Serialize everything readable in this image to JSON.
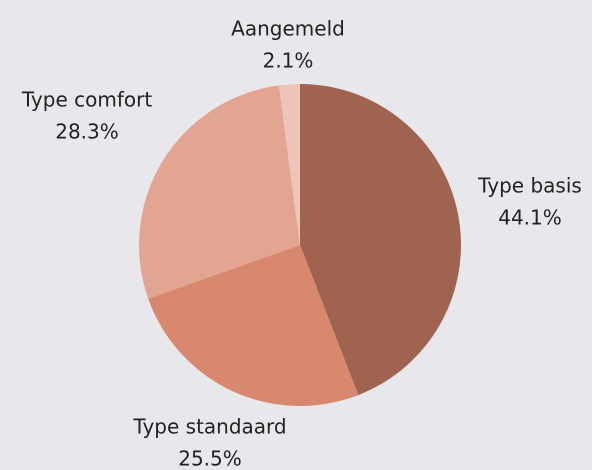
{
  "chart_data": {
    "type": "pie",
    "categories": [
      "Type basis",
      "Type standaard",
      "Type comfort",
      "Aangemeld"
    ],
    "values": [
      44.1,
      25.5,
      28.3,
      2.1
    ],
    "value_labels": [
      "44.1%",
      "25.5%",
      "28.3%",
      "2.1%"
    ],
    "colors": [
      "#a0634f",
      "#d98870",
      "#e2a591",
      "#ecc4b8"
    ]
  }
}
